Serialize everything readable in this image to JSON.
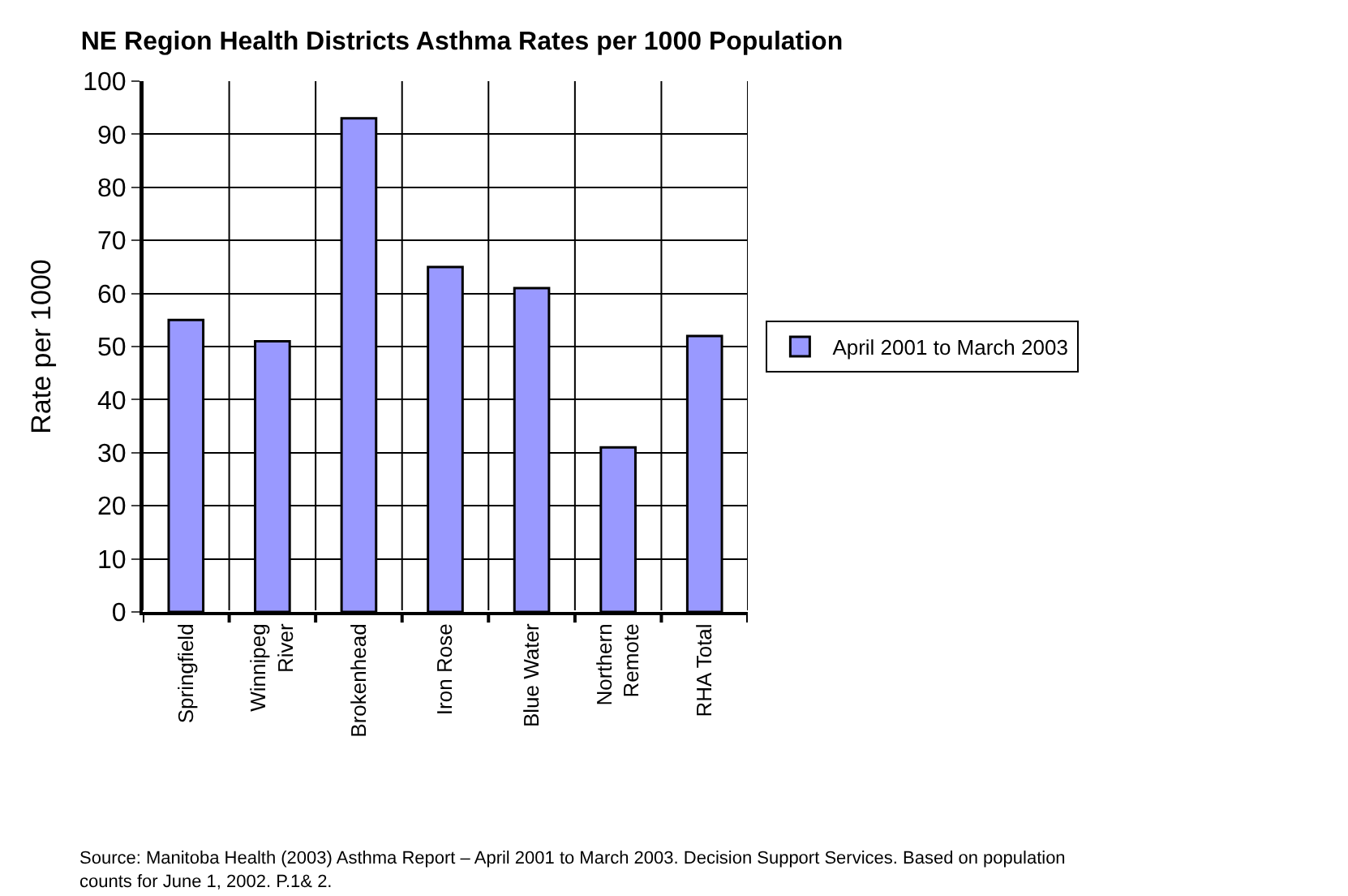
{
  "chart_data": {
    "type": "bar",
    "title": "NE Region Health Districts Asthma Rates per 1000 Population",
    "ylabel": "Rate per 1000",
    "categories": [
      "Springfield",
      "Winnipeg River",
      "Brokenhead",
      "Iron Rose",
      "Blue Water",
      "Northern Remote",
      "RHA Total"
    ],
    "series": [
      {
        "name": "April 2001 to March 2003",
        "color": "#9999ff",
        "values": [
          55,
          51,
          93,
          65,
          61,
          31,
          52
        ]
      }
    ],
    "ylim": [
      0,
      100
    ],
    "yticks": [
      0,
      10,
      20,
      30,
      40,
      50,
      60,
      70,
      80,
      90,
      100
    ],
    "grid": true,
    "legend": "right",
    "annotations": [
      "Source: Manitoba Health (2003) Asthma Report – April 2001 to March 2003. Decision Support Services. Based on population counts for June 1, 2002. P.1& 2."
    ]
  }
}
